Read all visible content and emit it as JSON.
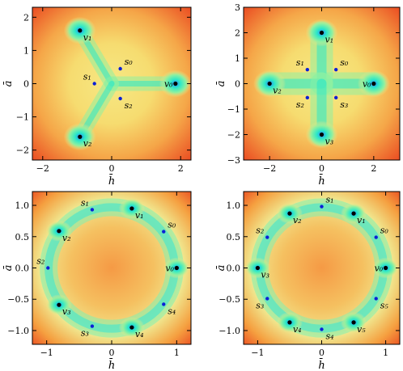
{
  "chart_data": [
    {
      "type": "heatmap",
      "xlabel": "h̄",
      "ylabel": "ā",
      "xlim": [
        -2.3,
        2.3
      ],
      "ylim": [
        -2.3,
        2.3
      ],
      "xticks": [
        "−2",
        "0",
        "2"
      ],
      "xtick_values": [
        -2,
        0,
        2
      ],
      "yticks": [
        "−2",
        "−1",
        "0",
        "1",
        "2"
      ],
      "ytick_values": [
        -2,
        -1,
        0,
        1,
        2
      ],
      "colormap": [
        "#2a7fff",
        "#2ce8c8",
        "#8ff0a0",
        "#f5e070",
        "#f59a45",
        "#e83a1a"
      ],
      "minima": [
        {
          "label": "v0",
          "x": 1.85,
          "y": 0.0
        },
        {
          "label": "v1",
          "x": -0.92,
          "y": 1.6
        },
        {
          "label": "v2",
          "x": -0.92,
          "y": -1.6
        }
      ],
      "saddles": [
        {
          "label": "s0",
          "x": 0.25,
          "y": 0.45
        },
        {
          "label": "s1",
          "x": -0.5,
          "y": 0.0
        },
        {
          "label": "s2",
          "x": 0.25,
          "y": -0.45
        }
      ]
    },
    {
      "type": "heatmap",
      "xlabel": "h̄",
      "ylabel": "ā",
      "xlim": [
        -3,
        3
      ],
      "ylim": [
        -3,
        3
      ],
      "xticks": [
        "−2",
        "0",
        "2"
      ],
      "xtick_values": [
        -2,
        0,
        2
      ],
      "yticks": [
        "−3",
        "−2",
        "−1",
        "0",
        "1",
        "2",
        "3"
      ],
      "ytick_values": [
        -3,
        -2,
        -1,
        0,
        1,
        2,
        3
      ],
      "colormap": [
        "#2a7fff",
        "#2ce8c8",
        "#8ff0a0",
        "#f5e070",
        "#f59a45",
        "#e83a1a"
      ],
      "minima": [
        {
          "label": "v0",
          "x": 2.0,
          "y": 0.0
        },
        {
          "label": "v1",
          "x": 0.0,
          "y": 2.0
        },
        {
          "label": "v2",
          "x": -2.0,
          "y": 0.0
        },
        {
          "label": "v3",
          "x": 0.0,
          "y": -2.0
        }
      ],
      "saddles": [
        {
          "label": "s0",
          "x": 0.55,
          "y": 0.55
        },
        {
          "label": "s1",
          "x": -0.55,
          "y": 0.55
        },
        {
          "label": "s2",
          "x": -0.55,
          "y": -0.55
        },
        {
          "label": "s3",
          "x": 0.55,
          "y": -0.55
        }
      ]
    },
    {
      "type": "heatmap",
      "xlabel": "h̄",
      "ylabel": "ā",
      "xlim": [
        -1.22,
        1.22
      ],
      "ylim": [
        -1.22,
        1.22
      ],
      "xticks": [
        "−1",
        "0",
        "1"
      ],
      "xtick_values": [
        -1,
        0,
        1
      ],
      "yticks": [
        "−1.0",
        "−0.5",
        "0.0",
        "0.5",
        "1.0"
      ],
      "ytick_values": [
        -1,
        -0.5,
        0,
        0.5,
        1
      ],
      "colormap": [
        "#2a7fff",
        "#2ce8c8",
        "#8ff0a0",
        "#f5e070",
        "#f59a45",
        "#e83a1a"
      ],
      "minima": [
        {
          "label": "v0",
          "x": 1.0,
          "y": 0.0
        },
        {
          "label": "v1",
          "x": 0.31,
          "y": 0.95
        },
        {
          "label": "v2",
          "x": -0.81,
          "y": 0.59
        },
        {
          "label": "v3",
          "x": -0.81,
          "y": -0.59
        },
        {
          "label": "v4",
          "x": 0.31,
          "y": -0.95
        }
      ],
      "saddles": [
        {
          "label": "s0",
          "x": 0.8,
          "y": 0.58
        },
        {
          "label": "s1",
          "x": -0.3,
          "y": 0.93
        },
        {
          "label": "s2",
          "x": -0.98,
          "y": 0.0
        },
        {
          "label": "s3",
          "x": -0.3,
          "y": -0.93
        },
        {
          "label": "s4",
          "x": 0.8,
          "y": -0.58
        }
      ]
    },
    {
      "type": "heatmap",
      "xlabel": "h̄",
      "ylabel": "ā",
      "xlim": [
        -1.22,
        1.22
      ],
      "ylim": [
        -1.22,
        1.22
      ],
      "xticks": [
        "−1",
        "0",
        "1"
      ],
      "xtick_values": [
        -1,
        0,
        1
      ],
      "yticks": [
        "−1.0",
        "−0.5",
        "0.0",
        "0.5",
        "1.0"
      ],
      "ytick_values": [
        -1,
        -0.5,
        0,
        0.5,
        1
      ],
      "colormap": [
        "#2a7fff",
        "#2ce8c8",
        "#8ff0a0",
        "#f5e070",
        "#f59a45",
        "#e83a1a"
      ],
      "minima": [
        {
          "label": "v0",
          "x": 1.0,
          "y": 0.0
        },
        {
          "label": "v1",
          "x": 0.5,
          "y": 0.87
        },
        {
          "label": "v2",
          "x": -0.5,
          "y": 0.87
        },
        {
          "label": "v3",
          "x": -1.0,
          "y": 0.0
        },
        {
          "label": "v4",
          "x": -0.5,
          "y": -0.87
        },
        {
          "label": "v5",
          "x": 0.5,
          "y": -0.87
        }
      ],
      "saddles": [
        {
          "label": "s0",
          "x": 0.85,
          "y": 0.49
        },
        {
          "label": "s1",
          "x": 0.0,
          "y": 0.98
        },
        {
          "label": "s2",
          "x": -0.85,
          "y": 0.49
        },
        {
          "label": "s3",
          "x": -0.85,
          "y": -0.49
        },
        {
          "label": "s4",
          "x": 0.0,
          "y": -0.98
        },
        {
          "label": "s5",
          "x": 0.85,
          "y": -0.49
        }
      ]
    }
  ]
}
